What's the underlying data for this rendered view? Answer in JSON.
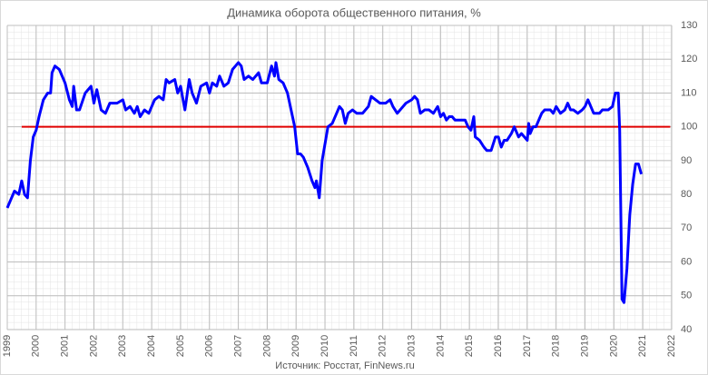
{
  "chart_data": {
    "type": "line",
    "title": "Динамика оборота общественного питания, %",
    "source": "Источник: Росстат, FinNews.ru",
    "x": [
      1999.0,
      1999.1,
      1999.25,
      1999.4,
      1999.5,
      1999.6,
      1999.7,
      1999.8,
      1999.9,
      2000.0,
      2000.1,
      2000.25,
      2000.4,
      2000.5,
      2000.55,
      2000.65,
      2000.8,
      2001.0,
      2001.15,
      2001.25,
      2001.3,
      2001.4,
      2001.5,
      2001.7,
      2001.9,
      2002.0,
      2002.1,
      2002.25,
      2002.4,
      2002.55,
      2002.8,
      2003.0,
      2003.1,
      2003.25,
      2003.4,
      2003.5,
      2003.6,
      2003.75,
      2003.9,
      2004.0,
      2004.1,
      2004.25,
      2004.4,
      2004.5,
      2004.6,
      2004.8,
      2004.9,
      2005.0,
      2005.15,
      2005.3,
      2005.4,
      2005.55,
      2005.7,
      2005.9,
      2006.0,
      2006.1,
      2006.25,
      2006.35,
      2006.5,
      2006.65,
      2006.8,
      2006.9,
      2007.0,
      2007.1,
      2007.2,
      2007.35,
      2007.5,
      2007.7,
      2007.8,
      2008.0,
      2008.15,
      2008.25,
      2008.3,
      2008.4,
      2008.55,
      2008.7,
      2008.85,
      2008.95,
      2009.05,
      2009.15,
      2009.25,
      2009.4,
      2009.55,
      2009.65,
      2009.7,
      2009.8,
      2009.9,
      2010.0,
      2010.1,
      2010.25,
      2010.4,
      2010.5,
      2010.6,
      2010.7,
      2010.8,
      2010.95,
      2011.1,
      2011.3,
      2011.5,
      2011.6,
      2011.75,
      2011.9,
      2012.1,
      2012.25,
      2012.35,
      2012.5,
      2012.6,
      2012.8,
      2013.0,
      2013.1,
      2013.2,
      2013.3,
      2013.45,
      2013.6,
      2013.75,
      2013.9,
      2014.0,
      2014.1,
      2014.2,
      2014.3,
      2014.4,
      2014.5,
      2014.7,
      2014.85,
      2014.95,
      2015.05,
      2015.15,
      2015.2,
      2015.35,
      2015.5,
      2015.6,
      2015.75,
      2015.9,
      2016.0,
      2016.1,
      2016.2,
      2016.3,
      2016.45,
      2016.55,
      2016.7,
      2016.8,
      2016.9,
      2017.0,
      2017.05,
      2017.1,
      2017.2,
      2017.3,
      2017.4,
      2017.5,
      2017.6,
      2017.8,
      2017.9,
      2018.0,
      2018.15,
      2018.3,
      2018.4,
      2018.5,
      2018.6,
      2018.75,
      2018.9,
      2019.0,
      2019.1,
      2019.2,
      2019.3,
      2019.4,
      2019.5,
      2019.6,
      2019.8,
      2019.95,
      2020.05,
      2020.15,
      2020.2,
      2020.28,
      2020.35,
      2020.45,
      2020.55,
      2020.65,
      2020.75,
      2020.85,
      2020.95
    ],
    "series": [
      {
        "color": "#0000ff",
        "values": [
          76,
          78,
          81,
          80,
          84,
          80,
          79,
          90,
          97,
          99,
          103,
          108,
          110,
          110,
          116,
          118,
          117,
          113,
          108,
          106,
          112,
          105,
          105,
          110,
          112,
          107,
          111,
          105,
          104,
          107,
          107,
          108,
          105,
          106,
          104,
          106,
          103,
          105,
          104,
          106,
          108,
          109,
          108,
          114,
          113,
          114,
          110,
          112,
          105,
          114,
          110,
          107,
          112,
          113,
          110,
          113,
          112,
          115,
          112,
          113,
          117,
          118,
          119,
          118,
          114,
          115,
          114,
          116,
          113,
          113,
          118,
          115,
          119,
          114,
          113,
          110,
          104,
          100,
          92,
          92,
          91,
          88,
          84,
          82,
          84,
          79,
          90,
          95,
          100,
          101,
          104,
          106,
          105,
          101,
          104,
          105,
          104,
          104,
          106,
          109,
          108,
          107,
          107,
          108,
          106,
          104,
          105,
          107,
          108,
          109,
          108,
          104,
          105,
          105,
          104,
          106,
          103,
          104,
          102,
          103,
          103,
          102,
          102,
          102,
          100,
          99,
          103,
          97,
          96,
          94,
          93,
          93,
          97,
          97,
          94,
          96,
          96,
          98,
          100,
          97,
          98,
          97,
          96,
          101,
          98,
          100,
          100,
          102,
          104,
          105,
          105,
          104,
          106,
          104,
          105,
          107,
          105,
          105,
          104,
          105,
          106,
          108,
          106,
          104,
          104,
          104,
          105,
          105,
          106,
          110,
          110,
          99,
          49,
          48,
          58,
          74,
          83,
          89,
          89,
          86
        ]
      }
    ],
    "reference_line": {
      "value": 100,
      "xrange": [
        1999.5,
        2021.95
      ],
      "color": "#e00000"
    },
    "xlim": [
      1999,
      2022
    ],
    "xticks": [
      1999,
      2000,
      2001,
      2002,
      2003,
      2004,
      2005,
      2006,
      2007,
      2008,
      2009,
      2010,
      2011,
      2012,
      2013,
      2014,
      2015,
      2016,
      2017,
      2018,
      2019,
      2020,
      2021,
      2022
    ],
    "ylim": [
      40,
      130
    ],
    "yticks": [
      40,
      50,
      60,
      70,
      80,
      90,
      100,
      110,
      120,
      130
    ],
    "grid": true
  }
}
